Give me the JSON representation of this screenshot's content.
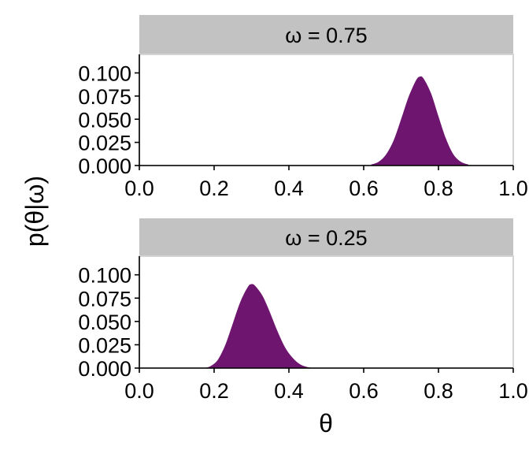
{
  "chart_data": {
    "type": "area",
    "ylabel": "p(θ|ω)",
    "xlabel": "θ",
    "colors": {
      "fill": "#6e166f",
      "strip": "#c2c2c2",
      "panel_border": "#d4d4d4"
    },
    "xlim": [
      0.0,
      1.0
    ],
    "xticks": [
      "0.0",
      "0.2",
      "0.4",
      "0.6",
      "0.8",
      "1.0"
    ],
    "ylim": [
      0.0,
      0.12
    ],
    "yticks": [
      "0.000",
      "0.025",
      "0.050",
      "0.075",
      "0.100"
    ],
    "grid": false,
    "panels": [
      {
        "strip_label": "ω = 0.75",
        "series": [
          {
            "x": [
              0.62,
              0.64,
              0.66,
              0.68,
              0.7,
              0.72,
              0.74,
              0.75,
              0.76,
              0.78,
              0.8,
              0.82,
              0.84,
              0.86,
              0.88
            ],
            "y": [
              0.001,
              0.004,
              0.012,
              0.027,
              0.05,
              0.074,
              0.092,
              0.096,
              0.094,
              0.078,
              0.053,
              0.029,
              0.012,
              0.004,
              0.001
            ]
          }
        ]
      },
      {
        "strip_label": "ω = 0.25",
        "series": [
          {
            "x": [
              0.17,
              0.19,
              0.21,
              0.23,
              0.25,
              0.27,
              0.29,
              0.3,
              0.31,
              0.33,
              0.35,
              0.37,
              0.39,
              0.41,
              0.43,
              0.45,
              0.47
            ],
            "y": [
              0.0,
              0.002,
              0.009,
              0.025,
              0.048,
              0.071,
              0.087,
              0.09,
              0.088,
              0.077,
              0.059,
              0.039,
              0.022,
              0.011,
              0.004,
              0.001,
              0.0
            ]
          }
        ]
      }
    ]
  }
}
